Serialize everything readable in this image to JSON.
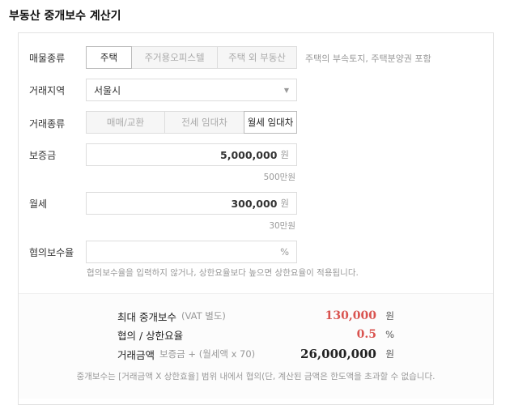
{
  "title": "부동산 중개보수 계산기",
  "property_type": {
    "label": "매물종류",
    "options": [
      "주택",
      "주거용오피스텔",
      "주택 외 부동산"
    ],
    "selected": "주택",
    "note": "주택의 부속토지, 주택분양권 포함"
  },
  "region": {
    "label": "거래지역",
    "value": "서울시"
  },
  "deal_type": {
    "label": "거래종류",
    "options": [
      "매매/교환",
      "전세 임대차",
      "월세 임대차"
    ],
    "selected": "월세 임대차"
  },
  "deposit": {
    "label": "보증금",
    "value": "5,000,000",
    "unit": "원",
    "hint": "500만원"
  },
  "monthly": {
    "label": "월세",
    "value": "300,000",
    "unit": "원",
    "hint": "30만원"
  },
  "rate": {
    "label": "협의보수율",
    "value": "",
    "unit": "%",
    "note": "협의보수율을 입력하지 않거나, 상한요율보다 높으면 상한요율이 적용됩니다."
  },
  "result": {
    "max_fee": {
      "label": "최대 중개보수",
      "sub": "(VAT 별도)",
      "value": "130,000",
      "unit": "원"
    },
    "rate": {
      "label": "협의 / 상한요율",
      "value": "0.5",
      "unit": "%"
    },
    "amount": {
      "label": "거래금액",
      "sub": "보증금 + (월세액 x 70)",
      "value": "26,000,000",
      "unit": "원"
    },
    "footnote": "중개보수는 [거래금액 X 상한효율] 범위 내에서 협의(단, 계산된 금액은 한도액을 초과할 수 없습니다."
  },
  "colors": {
    "accent": "#d9534f"
  }
}
